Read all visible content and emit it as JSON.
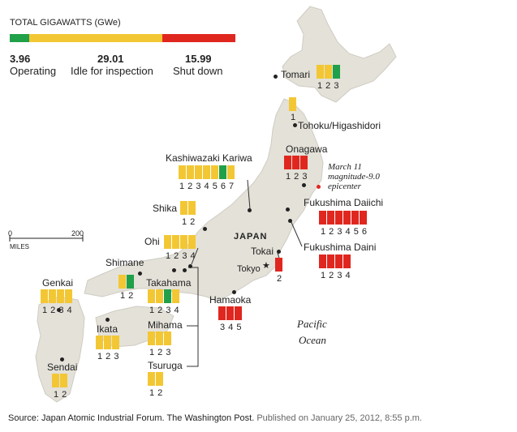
{
  "legend": {
    "title": "TOTAL GIGAWATTS (GWe)",
    "operating": {
      "value": "3.96",
      "label": "Operating",
      "gwe": 3.96
    },
    "idle": {
      "value": "29.01",
      "label": "Idle for inspection",
      "gwe": 29.01
    },
    "shutdown": {
      "value": "15.99",
      "label": "Shut down",
      "gwe": 15.99
    }
  },
  "colors": {
    "operating": "#21a04a",
    "idle": "#f3c734",
    "shutdown": "#e0271f",
    "land": "#e3e1d8"
  },
  "scale": {
    "zero": "0",
    "max": "200",
    "unit": "MILES"
  },
  "places": {
    "country": "JAPAN",
    "tokyo": "Tokyo",
    "ocean_line1": "Pacific",
    "ocean_line2": "Ocean"
  },
  "epicenter": {
    "line1": "March 11",
    "line2": "magnitude-9.0",
    "line3": "epicenter"
  },
  "plants": [
    {
      "id": "tomari",
      "name": "Tomari",
      "numbers": "1 2 3",
      "units": [
        "idle",
        "idle",
        "operating"
      ]
    },
    {
      "id": "tohoku",
      "name": "Tohoku/Higashidori",
      "numbers": "1",
      "units": [
        "idle"
      ]
    },
    {
      "id": "kashiwazaki",
      "name": "Kashiwazaki Kariwa",
      "numbers": "1 2 3 4 5 6 7",
      "units": [
        "idle",
        "idle",
        "idle",
        "idle",
        "idle",
        "operating",
        "idle"
      ]
    },
    {
      "id": "onagawa",
      "name": "Onagawa",
      "numbers": "1 2 3",
      "units": [
        "shut",
        "shut",
        "shut"
      ]
    },
    {
      "id": "fukudaiichi",
      "name": "Fukushima Daiichi",
      "numbers": "1 2 3 4 5 6",
      "units": [
        "shut",
        "shut",
        "shut",
        "shut",
        "shut",
        "shut"
      ]
    },
    {
      "id": "fukudaini",
      "name": "Fukushima Daini",
      "numbers": "1 2 3 4",
      "units": [
        "shut",
        "shut",
        "shut",
        "shut"
      ]
    },
    {
      "id": "tokai",
      "name": "Tokai",
      "numbers": "2",
      "units": [
        "shut"
      ]
    },
    {
      "id": "shika",
      "name": "Shika",
      "numbers": "1 2",
      "units": [
        "idle",
        "idle"
      ]
    },
    {
      "id": "ohi",
      "name": "Ohi",
      "numbers": "1 2 3 4",
      "units": [
        "idle",
        "idle",
        "idle",
        "idle"
      ]
    },
    {
      "id": "shimane",
      "name": "Shimane",
      "numbers": "1 2",
      "units": [
        "idle",
        "operating"
      ]
    },
    {
      "id": "takahama",
      "name": "Takahama",
      "numbers": "1 2 3 4",
      "units": [
        "idle",
        "idle",
        "operating",
        "idle"
      ]
    },
    {
      "id": "genkai",
      "name": "Genkai",
      "numbers": "1 2 3 4",
      "units": [
        "idle",
        "idle",
        "idle",
        "idle"
      ]
    },
    {
      "id": "ikata",
      "name": "Ikata",
      "numbers": "1 2 3",
      "units": [
        "idle",
        "idle",
        "idle"
      ]
    },
    {
      "id": "mihama",
      "name": "Mihama",
      "numbers": "1 2 3",
      "units": [
        "idle",
        "idle",
        "idle"
      ]
    },
    {
      "id": "tsuruga",
      "name": "Tsuruga",
      "numbers": "1 2",
      "units": [
        "idle",
        "idle"
      ]
    },
    {
      "id": "sendai",
      "name": "Sendai",
      "numbers": "1 2",
      "units": [
        "idle",
        "idle"
      ]
    },
    {
      "id": "hamaoka",
      "name": "Hamaoka",
      "numbers": "3 4 5",
      "units": [
        "shut",
        "shut",
        "shut"
      ]
    }
  ],
  "footer": {
    "source": "Source: Japan Atomic Industrial Forum. The Washington Post.",
    "published": "Published on January 25, 2012, 8:55 p.m."
  }
}
